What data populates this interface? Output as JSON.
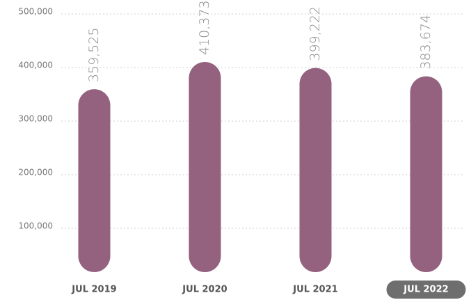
{
  "chart_data": {
    "type": "bar",
    "categories": [
      "JUL 2019",
      "JUL 2020",
      "JUL 2021",
      "JUL 2022"
    ],
    "values": [
      359525,
      410373,
      399222,
      383674
    ],
    "value_labels": [
      "359,525",
      "410,373",
      "399,222",
      "383,674"
    ],
    "color": "#94627f",
    "ylim": [
      0,
      500000
    ],
    "yticks": [
      {
        "value": 100000,
        "label": "100,000"
      },
      {
        "value": 200000,
        "label": "200,000"
      },
      {
        "value": 300000,
        "label": "300,000"
      },
      {
        "value": 400000,
        "label": "400,000"
      },
      {
        "value": 500000,
        "label": "500,000"
      }
    ],
    "grid": true,
    "highlight_index": 3
  }
}
